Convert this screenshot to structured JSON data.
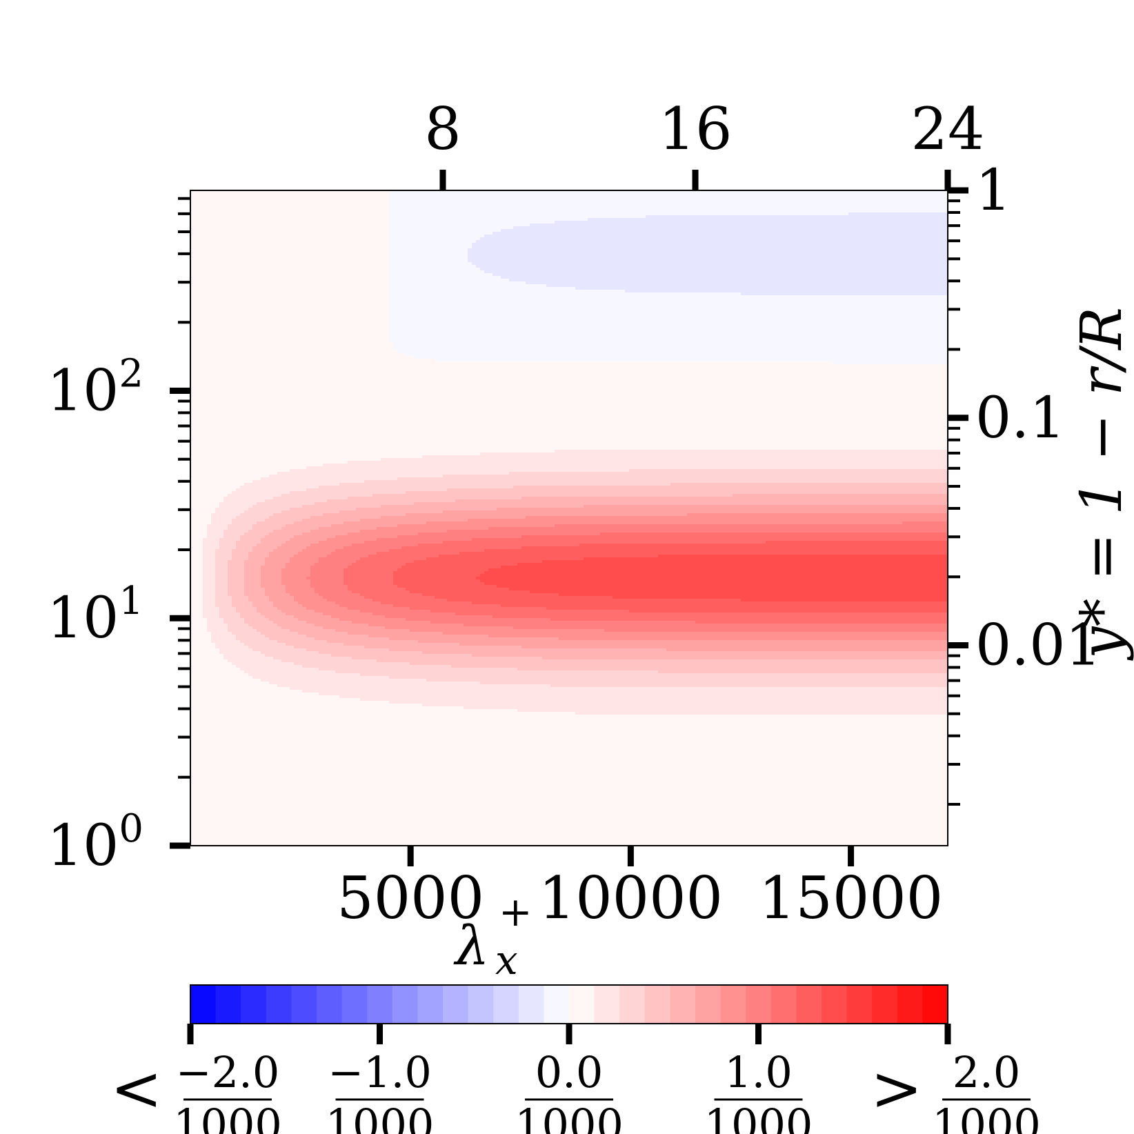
{
  "chart_data": {
    "type": "heatmap",
    "subtype": "filled-contour",
    "xlabel": "λ",
    "xlabel_superscript": "+",
    "xlabel_subscript": "x",
    "ylabel_right": "y* = 1 − r/R",
    "x_scale": "linear",
    "y_scale": "log",
    "xlim": [
      0,
      17200
    ],
    "ylim": [
      1,
      760
    ],
    "x_ticks": [
      {
        "value": 5000,
        "label": "5000"
      },
      {
        "value": 10000,
        "label": "10000"
      },
      {
        "value": 15000,
        "label": "15000"
      }
    ],
    "x_top_ticks": [
      {
        "value": 5733,
        "label": "8"
      },
      {
        "value": 11467,
        "label": "16"
      },
      {
        "value": 17200,
        "label": "24"
      }
    ],
    "y_ticks": [
      {
        "value": 1,
        "label": "10",
        "exp": "0"
      },
      {
        "value": 10,
        "label": "10",
        "exp": "1"
      },
      {
        "value": 100,
        "label": "10",
        "exp": "2"
      }
    ],
    "y_right_ticks": [
      {
        "value": 1,
        "label": "1"
      },
      {
        "value": 0.1,
        "label": "0.1"
      },
      {
        "value": 0.01,
        "label": "0.01"
      }
    ],
    "colorbar": {
      "levels": 30,
      "range": [
        -0.002,
        0.002
      ],
      "tick_values": [
        -0.002,
        -0.001,
        0.0,
        0.001,
        0.002
      ],
      "tick_numerators": [
        "−2.0",
        "−1.0",
        "0.0",
        "1.0",
        "2.0"
      ],
      "tick_denominator": "1000",
      "lower_prefix": "<",
      "upper_prefix": ">",
      "low_color": "#0000ff",
      "mid_color": "#ffffff",
      "high_color": "#ff0000"
    },
    "contours": [
      {
        "value": 0.00013,
        "color": "#fdf3f3"
      },
      {
        "value": 0.0003,
        "color": "#fde4e4"
      },
      {
        "value": 0.0004,
        "color": "#fcd3d3"
      },
      {
        "value": 0.00055,
        "color": "#fcc2c2"
      },
      {
        "value": 0.0007,
        "color": "#fbb2b2"
      },
      {
        "value": 0.0008,
        "color": "#fba1a1"
      },
      {
        "value": 0.00095,
        "color": "#fb9191"
      },
      {
        "value": 0.0011,
        "color": "#fa8080"
      },
      {
        "value": 0.0012,
        "color": "#fa7070"
      },
      {
        "value": 0.00135,
        "color": "#f96060"
      },
      {
        "value": -0.00013,
        "color": "#e6e6fa"
      },
      {
        "value": -0.0003,
        "color": "#d6d6f9"
      }
    ],
    "peak": {
      "x": 9000,
      "y": 15,
      "value": 0.00135
    }
  }
}
